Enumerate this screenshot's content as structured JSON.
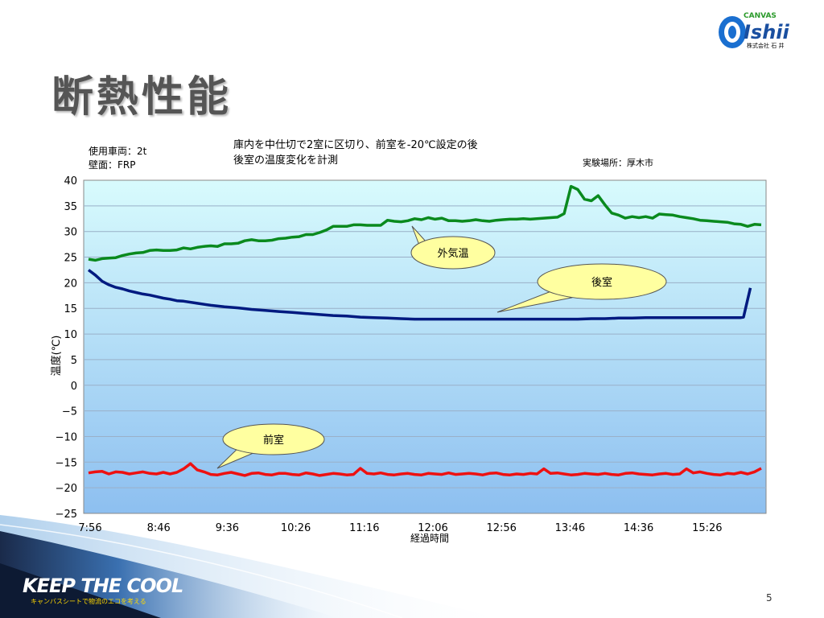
{
  "slide": {
    "title": "断熱性能",
    "page_number": "5"
  },
  "logo": {
    "brand": "Ishii",
    "arc_text": "CANVAS",
    "sub_text": "株式会社 石 井"
  },
  "footer": {
    "slogan": "KEEP THE COOL",
    "tagline": "キャンバスシートで物流のエコを考える"
  },
  "info": {
    "vehicle": "使用車両：2t",
    "wall": "壁面：FRP",
    "desc_line1": "庫内を中仕切で2室に区切り、前室を-20℃設定の後",
    "desc_line2": "後室の温度変化を計測",
    "location": "実験場所：厚木市"
  },
  "chart_data": {
    "type": "line",
    "xlabel": "経過時間",
    "ylabel": "温度(℃)",
    "ylim": [
      -25,
      40
    ],
    "yticks": [
      40,
      35,
      30,
      25,
      20,
      15,
      10,
      5,
      0,
      -5,
      -10,
      -15,
      -20,
      -25
    ],
    "xticks": [
      "7:56",
      "8:46",
      "9:36",
      "10:26",
      "11:16",
      "12:06",
      "12:56",
      "13:46",
      "14:36",
      "15:26"
    ],
    "x_range_minutes": [
      0,
      495
    ],
    "grid": true,
    "colors": {
      "outside": "#0a8a1e",
      "rear": "#001a80",
      "front": "#ee1111"
    },
    "series": [
      {
        "name": "外気温",
        "key": "outside",
        "x": [
          0,
          5,
          10,
          15,
          20,
          25,
          30,
          35,
          40,
          45,
          50,
          55,
          60,
          65,
          70,
          75,
          80,
          85,
          90,
          95,
          100,
          105,
          110,
          115,
          120,
          125,
          130,
          135,
          140,
          145,
          150,
          155,
          160,
          165,
          170,
          175,
          180,
          185,
          190,
          195,
          200,
          205,
          210,
          215,
          220,
          225,
          230,
          235,
          240,
          245,
          250,
          255,
          260,
          265,
          270,
          275,
          280,
          285,
          290,
          295,
          300,
          305,
          310,
          315,
          320,
          325,
          330,
          335,
          340,
          345,
          350,
          355,
          360,
          365,
          370,
          375,
          380,
          385,
          390,
          395,
          400,
          405,
          410,
          415,
          420,
          425,
          430,
          435,
          440,
          445,
          450,
          455,
          460,
          465,
          470,
          475,
          480,
          485,
          490,
          495
        ],
        "values": [
          24.6,
          24.4,
          24.7,
          24.8,
          24.9,
          25.3,
          25.6,
          25.8,
          25.9,
          26.3,
          26.4,
          26.3,
          26.3,
          26.4,
          26.8,
          26.6,
          26.9,
          27.1,
          27.2,
          27.1,
          27.6,
          27.6,
          27.7,
          28.2,
          28.4,
          28.2,
          28.2,
          28.3,
          28.6,
          28.7,
          28.9,
          29.0,
          29.4,
          29.4,
          29.8,
          30.3,
          31.0,
          31.0,
          31.0,
          31.3,
          31.3,
          31.2,
          31.2,
          31.2,
          32.2,
          32.0,
          31.9,
          32.1,
          32.5,
          32.3,
          32.7,
          32.4,
          32.6,
          32.1,
          32.1,
          32.0,
          32.1,
          32.3,
          32.1,
          32.0,
          32.2,
          32.3,
          32.4,
          32.4,
          32.5,
          32.4,
          32.5,
          32.6,
          32.7,
          32.8,
          33.5,
          38.8,
          38.2,
          36.3,
          36.0,
          37.0,
          35.2,
          33.6,
          33.2,
          32.6,
          32.9,
          32.7,
          32.9,
          32.6,
          33.4,
          33.3,
          33.2,
          32.9,
          32.7,
          32.5,
          32.2,
          32.1,
          32.0,
          31.9,
          31.8,
          31.5,
          31.4,
          31.0,
          31.4,
          31.3
        ]
      },
      {
        "name": "後室",
        "key": "rear",
        "x": [
          0,
          5,
          10,
          15,
          20,
          25,
          30,
          35,
          40,
          45,
          50,
          55,
          60,
          65,
          70,
          80,
          90,
          100,
          110,
          120,
          130,
          140,
          150,
          160,
          170,
          180,
          190,
          200,
          210,
          220,
          230,
          240,
          250,
          260,
          270,
          280,
          290,
          300,
          310,
          320,
          330,
          340,
          350,
          360,
          370,
          380,
          390,
          400,
          410,
          420,
          430,
          440,
          450,
          460,
          470,
          480,
          482,
          487
        ],
        "values": [
          22.5,
          21.5,
          20.3,
          19.6,
          19.1,
          18.8,
          18.4,
          18.1,
          17.8,
          17.6,
          17.3,
          17.0,
          16.8,
          16.5,
          16.4,
          16.0,
          15.6,
          15.3,
          15.1,
          14.8,
          14.6,
          14.4,
          14.2,
          14.0,
          13.8,
          13.6,
          13.5,
          13.3,
          13.2,
          13.1,
          13.0,
          12.9,
          12.9,
          12.9,
          12.9,
          12.9,
          12.9,
          12.9,
          12.9,
          12.9,
          12.9,
          12.9,
          12.9,
          12.9,
          13.0,
          13.0,
          13.1,
          13.1,
          13.2,
          13.2,
          13.2,
          13.2,
          13.2,
          13.2,
          13.2,
          13.2,
          13.3,
          19.0
        ]
      },
      {
        "name": "前室",
        "key": "front",
        "x": [
          0,
          5,
          10,
          15,
          20,
          25,
          30,
          35,
          40,
          45,
          50,
          55,
          60,
          65,
          70,
          75,
          80,
          85,
          90,
          95,
          100,
          105,
          110,
          115,
          120,
          125,
          130,
          135,
          140,
          145,
          150,
          155,
          160,
          165,
          170,
          175,
          180,
          185,
          190,
          195,
          200,
          205,
          210,
          215,
          220,
          225,
          230,
          235,
          240,
          245,
          250,
          255,
          260,
          265,
          270,
          275,
          280,
          285,
          290,
          295,
          300,
          305,
          310,
          315,
          320,
          325,
          330,
          335,
          340,
          345,
          350,
          355,
          360,
          365,
          370,
          375,
          380,
          385,
          390,
          395,
          400,
          405,
          410,
          415,
          420,
          425,
          430,
          435,
          440,
          445,
          450,
          455,
          460,
          465,
          470,
          475,
          480,
          485,
          490,
          495
        ],
        "values": [
          -17.1,
          -16.9,
          -16.8,
          -17.3,
          -16.9,
          -17.0,
          -17.3,
          -17.1,
          -16.9,
          -17.2,
          -17.3,
          -17.0,
          -17.3,
          -17.0,
          -16.3,
          -15.3,
          -16.5,
          -16.9,
          -17.4,
          -17.5,
          -17.2,
          -17.0,
          -17.3,
          -17.6,
          -17.2,
          -17.1,
          -17.4,
          -17.5,
          -17.2,
          -17.2,
          -17.4,
          -17.5,
          -17.1,
          -17.3,
          -17.6,
          -17.4,
          -17.2,
          -17.3,
          -17.5,
          -17.4,
          -16.2,
          -17.2,
          -17.3,
          -17.1,
          -17.4,
          -17.5,
          -17.3,
          -17.2,
          -17.4,
          -17.5,
          -17.2,
          -17.3,
          -17.4,
          -17.1,
          -17.4,
          -17.3,
          -17.2,
          -17.3,
          -17.5,
          -17.2,
          -17.1,
          -17.4,
          -17.5,
          -17.3,
          -17.4,
          -17.2,
          -17.3,
          -16.3,
          -17.2,
          -17.1,
          -17.3,
          -17.5,
          -17.4,
          -17.2,
          -17.3,
          -17.4,
          -17.2,
          -17.4,
          -17.5,
          -17.2,
          -17.1,
          -17.3,
          -17.4,
          -17.5,
          -17.3,
          -17.2,
          -17.4,
          -17.3,
          -16.3,
          -17.1,
          -16.9,
          -17.2,
          -17.4,
          -17.5,
          -17.2,
          -17.3,
          -17.0,
          -17.3,
          -16.9,
          -16.2
        ]
      }
    ],
    "annotations": [
      {
        "text": "外気温",
        "series": "outside"
      },
      {
        "text": "後室",
        "series": "rear"
      },
      {
        "text": "前室",
        "series": "front"
      }
    ]
  }
}
